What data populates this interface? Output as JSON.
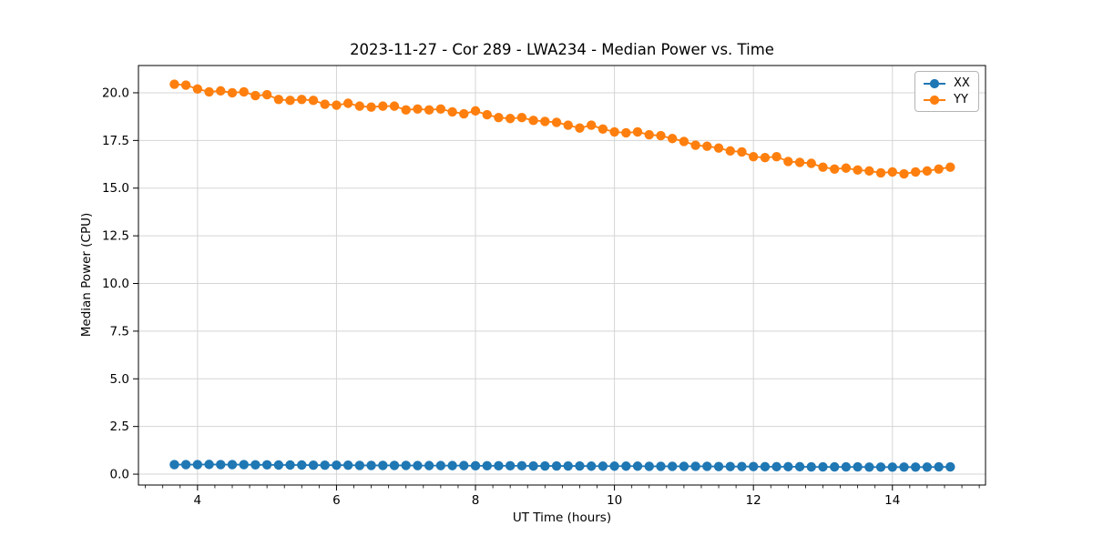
{
  "chart_data": {
    "type": "line",
    "title": "2023-11-27 - Cor 289 - LWA234 - Median Power vs. Time",
    "xlabel": "UT Time (hours)",
    "ylabel": "Median Power (CPU)",
    "xlim": [
      3.15,
      15.34
    ],
    "ylim": [
      -0.57,
      21.43
    ],
    "xticks": [
      4,
      6,
      8,
      10,
      12,
      14
    ],
    "yticks": [
      0.0,
      2.5,
      5.0,
      7.5,
      10.0,
      12.5,
      15.0,
      17.5,
      20.0
    ],
    "minor_xtick_step": 0.25,
    "grid": true,
    "grid_color": "#d5d5d5",
    "legend_position": "upper right",
    "x": [
      3.667,
      3.833,
      4.0,
      4.167,
      4.333,
      4.5,
      4.667,
      4.833,
      5.0,
      5.167,
      5.333,
      5.5,
      5.667,
      5.833,
      6.0,
      6.167,
      6.333,
      6.5,
      6.667,
      6.833,
      7.0,
      7.167,
      7.333,
      7.5,
      7.667,
      7.833,
      8.0,
      8.167,
      8.333,
      8.5,
      8.667,
      8.833,
      9.0,
      9.167,
      9.333,
      9.5,
      9.667,
      9.833,
      10.0,
      10.167,
      10.333,
      10.5,
      10.667,
      10.833,
      11.0,
      11.167,
      11.333,
      11.5,
      11.667,
      11.833,
      12.0,
      12.167,
      12.333,
      12.5,
      12.667,
      12.833,
      13.0,
      13.167,
      13.333,
      13.5,
      13.667,
      13.833,
      14.0,
      14.167,
      14.333,
      14.5,
      14.667,
      14.833
    ],
    "series": [
      {
        "name": "XX",
        "color": "#1f77b4",
        "values": [
          0.5,
          0.5,
          0.5,
          0.51,
          0.5,
          0.5,
          0.5,
          0.49,
          0.49,
          0.48,
          0.48,
          0.48,
          0.47,
          0.47,
          0.47,
          0.47,
          0.46,
          0.46,
          0.46,
          0.46,
          0.46,
          0.45,
          0.45,
          0.45,
          0.45,
          0.45,
          0.44,
          0.44,
          0.44,
          0.44,
          0.44,
          0.43,
          0.43,
          0.43,
          0.43,
          0.43,
          0.42,
          0.42,
          0.42,
          0.42,
          0.42,
          0.41,
          0.41,
          0.41,
          0.41,
          0.41,
          0.41,
          0.4,
          0.4,
          0.4,
          0.4,
          0.39,
          0.39,
          0.39,
          0.39,
          0.38,
          0.38,
          0.38,
          0.38,
          0.38,
          0.37,
          0.37,
          0.37,
          0.37,
          0.37,
          0.37,
          0.38,
          0.38
        ]
      },
      {
        "name": "YY",
        "color": "#ff7f0e",
        "values": [
          20.45,
          20.4,
          20.2,
          20.05,
          20.1,
          20.0,
          20.05,
          19.85,
          19.9,
          19.65,
          19.6,
          19.65,
          19.6,
          19.4,
          19.35,
          19.45,
          19.3,
          19.25,
          19.3,
          19.3,
          19.1,
          19.15,
          19.1,
          19.15,
          19.0,
          18.9,
          19.05,
          18.85,
          18.7,
          18.65,
          18.7,
          18.55,
          18.5,
          18.45,
          18.3,
          18.15,
          18.3,
          18.1,
          17.95,
          17.9,
          17.95,
          17.8,
          17.75,
          17.6,
          17.45,
          17.25,
          17.2,
          17.1,
          16.95,
          16.9,
          16.65,
          16.6,
          16.65,
          16.4,
          16.35,
          16.3,
          16.1,
          16.0,
          16.05,
          15.95,
          15.9,
          15.8,
          15.85,
          15.75,
          15.85,
          15.9,
          16.0,
          16.1
        ]
      }
    ]
  }
}
